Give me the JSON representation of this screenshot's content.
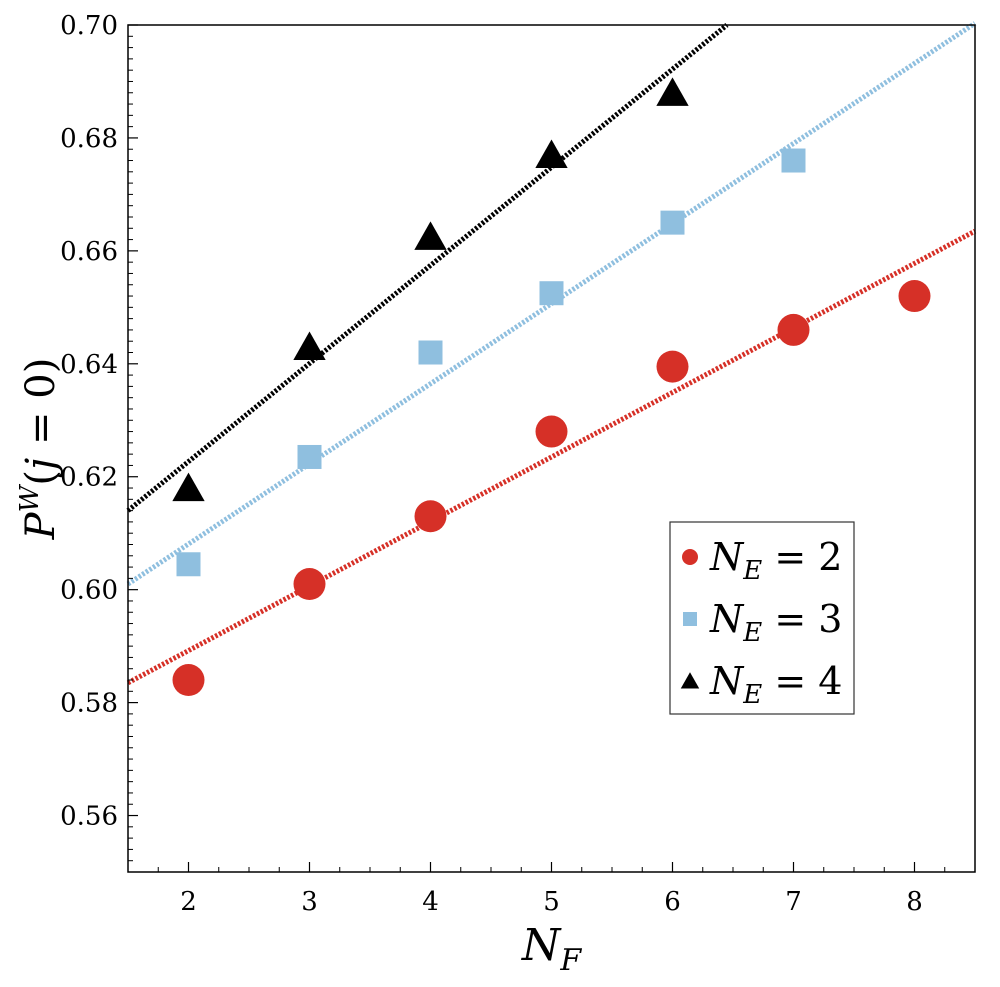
{
  "chart_data": {
    "type": "scatter",
    "xlabel": "N_F",
    "ylabel": "P^W(j = 0)",
    "xlim": [
      1.5,
      8.5
    ],
    "ylim": [
      0.55,
      0.7
    ],
    "x_ticks": [
      2,
      3,
      4,
      5,
      6,
      7,
      8
    ],
    "y_ticks": [
      0.56,
      0.58,
      0.6,
      0.62,
      0.64,
      0.66,
      0.68,
      0.7
    ],
    "y_tick_labels": [
      "0.56",
      "0.58",
      "0.60",
      "0.62",
      "0.64",
      "0.66",
      "0.68",
      "0.70"
    ],
    "grid": false,
    "legend_position": "right",
    "series": [
      {
        "name": "N_E = 2",
        "marker": "circle",
        "color": "#d63027",
        "points": [
          [
            2,
            0.584
          ],
          [
            3,
            0.601
          ],
          [
            4,
            0.613
          ],
          [
            5,
            0.628
          ],
          [
            6,
            0.6395
          ],
          [
            7,
            0.646
          ],
          [
            8,
            0.652
          ]
        ],
        "fit_line": {
          "style": "dotted",
          "points": [
            [
              1.5,
              0.5835
            ],
            [
              8.5,
              0.6635
            ]
          ]
        }
      },
      {
        "name": "N_E = 3",
        "marker": "square",
        "color": "#8fbfdf",
        "points": [
          [
            2,
            0.6045
          ],
          [
            3,
            0.6235
          ],
          [
            4,
            0.642
          ],
          [
            5,
            0.6525
          ],
          [
            6,
            0.665
          ],
          [
            7,
            0.676
          ]
        ],
        "fit_line": {
          "style": "dotted",
          "points": [
            [
              1.5,
              0.601
            ],
            [
              8.5,
              0.7003
            ]
          ]
        }
      },
      {
        "name": "N_E = 4",
        "marker": "triangle",
        "color": "#000000",
        "points": [
          [
            2,
            0.618
          ],
          [
            3,
            0.643
          ],
          [
            4,
            0.6625
          ],
          [
            5,
            0.677
          ],
          [
            6,
            0.688
          ]
        ],
        "fit_line": {
          "style": "dotted",
          "points": [
            [
              1.5,
              0.614
            ],
            [
              6.45,
              0.7
            ]
          ]
        }
      }
    ]
  }
}
